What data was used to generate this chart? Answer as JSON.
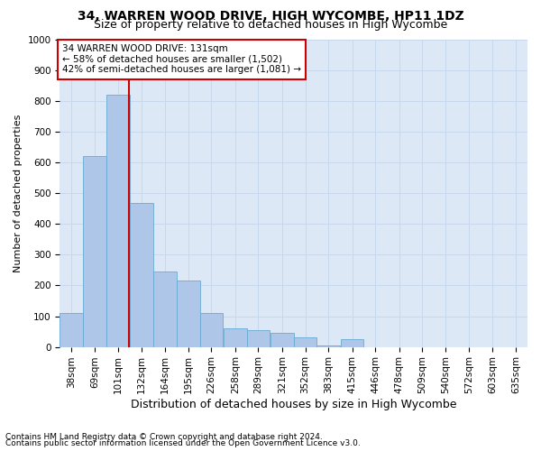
{
  "title1": "34, WARREN WOOD DRIVE, HIGH WYCOMBE, HP11 1DZ",
  "title2": "Size of property relative to detached houses in High Wycombe",
  "xlabel": "Distribution of detached houses by size in High Wycombe",
  "ylabel": "Number of detached properties",
  "footnote1": "Contains HM Land Registry data © Crown copyright and database right 2024.",
  "footnote2": "Contains public sector information licensed under the Open Government Licence v3.0.",
  "annotation_title": "34 WARREN WOOD DRIVE: 131sqm",
  "annotation_line1": "← 58% of detached houses are smaller (1,502)",
  "annotation_line2": "42% of semi-detached houses are larger (1,081) →",
  "property_sqm": 131,
  "bin_starts": [
    38,
    69,
    101,
    132,
    164,
    195,
    226,
    258,
    289,
    321,
    352,
    383,
    415,
    446,
    478,
    509,
    540,
    572,
    603,
    635
  ],
  "bin_width": 31,
  "bar_heights": [
    110,
    620,
    820,
    470,
    245,
    215,
    110,
    60,
    55,
    45,
    30,
    5,
    25,
    0,
    0,
    0,
    0,
    0,
    0,
    0
  ],
  "bar_color": "#aec6e8",
  "bar_edge_color": "#6aaad4",
  "vline_color": "#cc0000",
  "annotation_box_color": "#cc0000",
  "ylim": [
    0,
    1000
  ],
  "yticks": [
    0,
    100,
    200,
    300,
    400,
    500,
    600,
    700,
    800,
    900,
    1000
  ],
  "grid_color": "#c8d8ec",
  "background_color": "#dce8f5",
  "fig_width": 6.0,
  "fig_height": 5.0,
  "title1_fontsize": 10,
  "title2_fontsize": 9,
  "ylabel_fontsize": 8,
  "xlabel_fontsize": 9,
  "tick_fontsize": 7.5,
  "annot_fontsize": 7.5,
  "footnote_fontsize": 6.5
}
